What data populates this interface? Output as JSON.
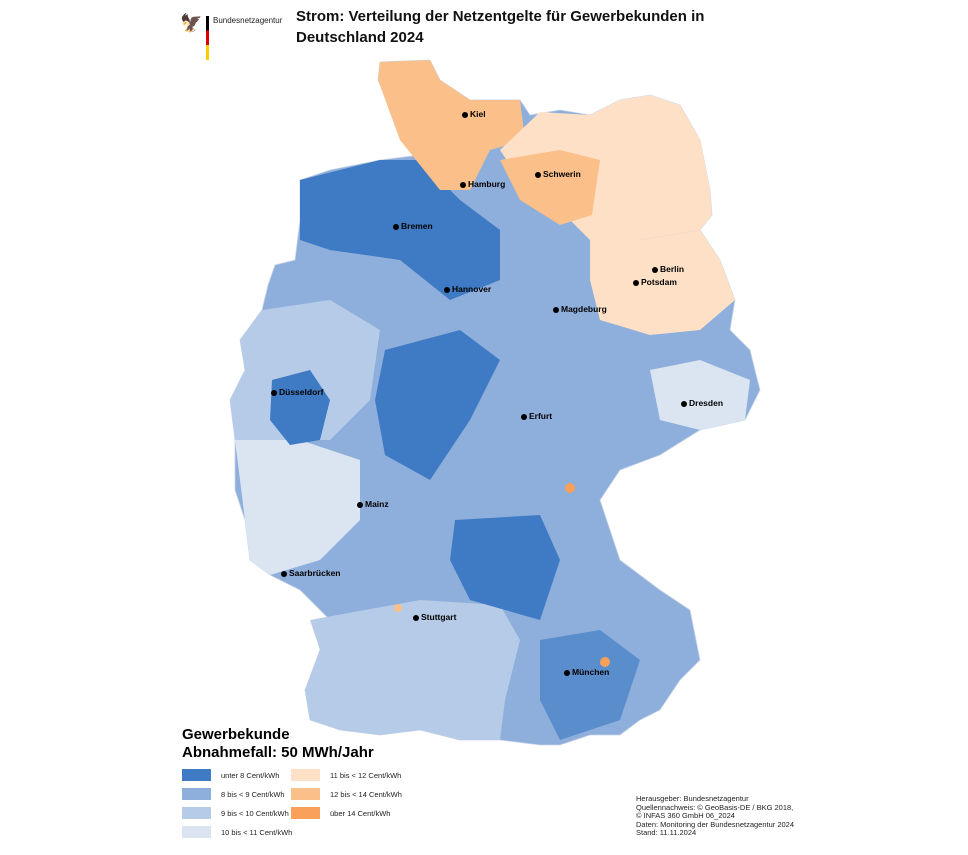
{
  "header": {
    "brand": "Bundesnetzagentur",
    "title": "Strom: Verteilung der Netzentgelte für Gewerbekunden in Deutschland 2024"
  },
  "cities": [
    "Kiel",
    "Hamburg",
    "Schwerin",
    "Bremen",
    "Berlin",
    "Potsdam",
    "Hannover",
    "Magdeburg",
    "Düsseldorf",
    "Dresden",
    "Erfurt",
    "Mainz",
    "Saarbrücken",
    "Stuttgart",
    "München"
  ],
  "legend": {
    "title_line1": "Gewerbekunde",
    "title_line2": "Abnahmefall: 50 MWh/Jahr",
    "items": [
      {
        "label": "unter 8 Cent/kWh",
        "color": "#3f7bc4"
      },
      {
        "label": "8 bis < 9 Cent/kWh",
        "color": "#8eaedb"
      },
      {
        "label": "9 bis < 10 Cent/kWh",
        "color": "#b6cbe7"
      },
      {
        "label": "10 bis < 11 Cent/kWh",
        "color": "#dbe5f2"
      },
      {
        "label": "11 bis < 12 Cent/kWh",
        "color": "#fde0c5"
      },
      {
        "label": "12 bis < 14 Cent/kWh",
        "color": "#fbbf8a"
      },
      {
        "label": "über 14 Cent/kWh",
        "color": "#f9a15a"
      }
    ]
  },
  "source": [
    "Herausgeber: Bundesnetzagentur",
    "Quellennachweis: © GeoBasis-DE / BKG 2018,",
    "© INFAS 360 GmbH 06_2024",
    "Daten: Monitoring der Bundesnetzagentur 2024",
    "Stand: 11.11.2024"
  ]
}
